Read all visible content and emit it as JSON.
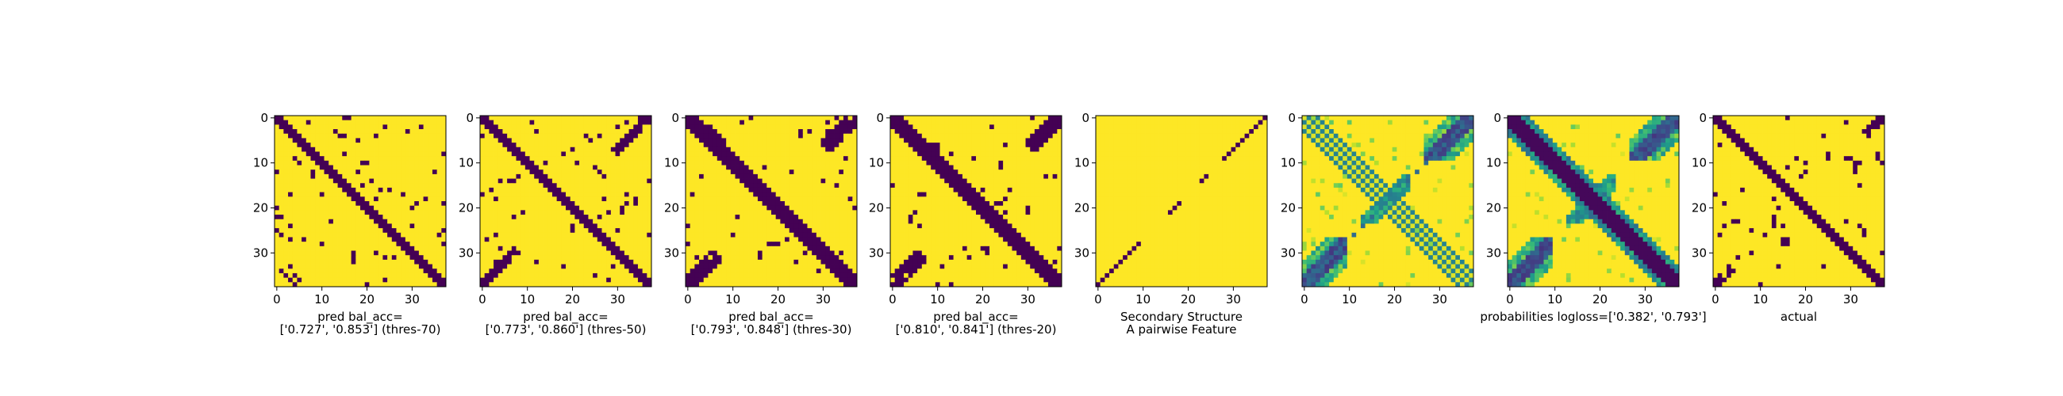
{
  "figure": {
    "background": "#ffffff",
    "colormap": "viridis",
    "colors": {
      "low": "#440154",
      "high": "#fde725"
    }
  },
  "chart_data": [
    {
      "type": "heatmap",
      "size": 38,
      "xticks": [
        0,
        10,
        20,
        30
      ],
      "yticks": [
        0,
        10,
        20,
        30
      ],
      "xlabel_lines": [
        "pred bal_acc=",
        "['0.727', '0.853'] (thres-70)"
      ],
      "model": {
        "kind": "binary",
        "band": 1,
        "anti_thr": 99,
        "anti_cutoff": 0,
        "noise": 0.05,
        "seed": 1,
        "extra": [
          [
            27,
            3
          ],
          [
            34,
            1
          ],
          [
            35,
            2
          ],
          [
            36,
            3
          ],
          [
            37,
            4
          ],
          [
            26,
            36
          ],
          [
            28,
            37
          ],
          [
            33,
            3
          ],
          [
            35,
            4
          ],
          [
            36,
            5
          ]
        ]
      }
    },
    {
      "type": "heatmap",
      "size": 38,
      "xticks": [
        0,
        10,
        20,
        30
      ],
      "yticks": [
        0,
        10,
        20,
        30
      ],
      "xlabel_lines": [
        "pred bal_acc=",
        "['0.773', '0.860'] (thres-50)"
      ],
      "model": {
        "kind": "binary",
        "band": 1.6,
        "anti_thr": 1.6,
        "anti_cutoff": 8,
        "noise": 0.03,
        "seed": 2,
        "extra": []
      }
    },
    {
      "type": "heatmap",
      "size": 38,
      "xticks": [
        0,
        10,
        20,
        30
      ],
      "yticks": [
        0,
        10,
        20,
        30
      ],
      "xlabel_lines": [
        "pred bal_acc=",
        "['0.793', '0.848'] (thres-30)"
      ],
      "model": {
        "kind": "binary",
        "band": 2.0,
        "anti_thr": 2.0,
        "anti_cutoff": 7,
        "noise": 0.03,
        "seed": 3,
        "extra": [
          [
            30,
            16
          ],
          [
            31,
            16
          ],
          [
            2,
            5
          ],
          [
            3,
            6
          ],
          [
            4,
            7
          ],
          [
            5,
            8
          ],
          [
            6,
            8
          ]
        ]
      }
    },
    {
      "type": "heatmap",
      "size": 38,
      "xticks": [
        0,
        10,
        20,
        30
      ],
      "yticks": [
        0,
        10,
        20,
        30
      ],
      "xlabel_lines": [
        "pred bal_acc=",
        "['0.810', '0.841'] (thres-20)"
      ],
      "model": {
        "kind": "binary",
        "band": 2.2,
        "anti_thr": 2.2,
        "anti_cutoff": 7,
        "noise": 0.03,
        "seed": 4,
        "extra": [
          [
            10,
            24
          ],
          [
            11,
            24
          ],
          [
            20,
            30
          ],
          [
            21,
            30
          ],
          [
            29,
            20
          ],
          [
            30,
            21
          ],
          [
            6,
            9
          ],
          [
            7,
            9
          ],
          [
            8,
            9
          ],
          [
            6,
            10
          ],
          [
            7,
            10
          ],
          [
            8,
            10
          ],
          [
            9,
            10
          ]
        ]
      }
    },
    {
      "type": "heatmap",
      "size": 38,
      "xticks": [
        0,
        10,
        20,
        30
      ],
      "yticks": [
        0,
        10,
        20,
        30
      ],
      "xlabel_lines": [
        "Secondary Structure",
        "A pairwise Feature"
      ],
      "model": {
        "kind": "ss",
        "segments": [
          [
            0,
            9
          ],
          [
            13,
            14
          ],
          [
            19,
            21
          ],
          [
            28,
            37
          ]
        ]
      }
    },
    {
      "type": "heatmap",
      "size": 38,
      "xticks": [
        0,
        10,
        20,
        30
      ],
      "yticks": [
        0,
        10,
        20,
        30
      ],
      "xlabel_lines": [],
      "model": {
        "kind": "pair",
        "seed": 6
      }
    },
    {
      "type": "heatmap",
      "size": 38,
      "xticks": [
        0,
        10,
        20,
        30
      ],
      "yticks": [
        0,
        10,
        20,
        30
      ],
      "xlabel_lines": [
        "probabilities logloss=['0.382', '0.793']"
      ],
      "model": {
        "kind": "prob",
        "seed": 7
      }
    },
    {
      "type": "heatmap",
      "size": 38,
      "xticks": [
        0,
        10,
        20,
        30
      ],
      "yticks": [
        0,
        10,
        20,
        30
      ],
      "xlabel_lines": [
        "actual"
      ],
      "model": {
        "kind": "binary",
        "band": 1.8,
        "anti_thr": 1.8,
        "anti_cutoff": 4,
        "noise": 0.04,
        "seed": 8,
        "extra": [
          [
            27,
            15
          ],
          [
            28,
            15
          ],
          [
            27,
            16
          ],
          [
            28,
            16
          ],
          [
            22,
            13
          ],
          [
            23,
            13
          ],
          [
            25,
            33
          ],
          [
            26,
            33
          ],
          [
            24,
            32
          ],
          [
            10,
            31
          ],
          [
            11,
            31
          ],
          [
            12,
            31
          ],
          [
            10,
            32
          ]
        ]
      }
    }
  ]
}
